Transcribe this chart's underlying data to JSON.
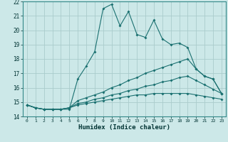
{
  "xlabel": "Humidex (Indice chaleur)",
  "ylabel": "",
  "bg_color": "#cce8e8",
  "grid_color": "#aacccc",
  "line_color": "#1a7070",
  "xlim": [
    -0.5,
    23.5
  ],
  "ylim": [
    14,
    22
  ],
  "xticks": [
    0,
    1,
    2,
    3,
    4,
    5,
    6,
    7,
    8,
    9,
    10,
    11,
    12,
    13,
    14,
    15,
    16,
    17,
    18,
    19,
    20,
    21,
    22,
    23
  ],
  "yticks": [
    14,
    15,
    16,
    17,
    18,
    19,
    20,
    21,
    22
  ],
  "lines": [
    {
      "x": [
        0,
        1,
        2,
        3,
        4,
        5,
        6,
        7,
        8,
        9,
        10,
        11,
        12,
        13,
        14,
        15,
        16,
        17,
        18,
        19,
        20,
        21,
        22,
        23
      ],
      "y": [
        14.8,
        14.6,
        14.5,
        14.5,
        14.5,
        14.5,
        16.6,
        17.5,
        18.5,
        21.5,
        21.8,
        20.3,
        21.3,
        19.7,
        19.5,
        20.7,
        19.4,
        19.0,
        19.1,
        18.8,
        17.3,
        16.8,
        16.6,
        15.6
      ]
    },
    {
      "x": [
        0,
        1,
        2,
        3,
        4,
        5,
        6,
        7,
        8,
        9,
        10,
        11,
        12,
        13,
        14,
        15,
        16,
        17,
        18,
        19,
        20,
        21,
        22,
        23
      ],
      "y": [
        14.8,
        14.6,
        14.5,
        14.5,
        14.5,
        14.6,
        15.1,
        15.3,
        15.5,
        15.7,
        16.0,
        16.2,
        16.5,
        16.7,
        17.0,
        17.2,
        17.4,
        17.6,
        17.8,
        18.0,
        17.3,
        16.8,
        16.6,
        15.6
      ]
    },
    {
      "x": [
        0,
        1,
        2,
        3,
        4,
        5,
        6,
        7,
        8,
        9,
        10,
        11,
        12,
        13,
        14,
        15,
        16,
        17,
        18,
        19,
        20,
        21,
        22,
        23
      ],
      "y": [
        14.8,
        14.6,
        14.5,
        14.5,
        14.5,
        14.6,
        14.9,
        15.0,
        15.2,
        15.3,
        15.5,
        15.6,
        15.8,
        15.9,
        16.1,
        16.2,
        16.4,
        16.5,
        16.7,
        16.8,
        16.5,
        16.2,
        15.9,
        15.6
      ]
    },
    {
      "x": [
        0,
        1,
        2,
        3,
        4,
        5,
        6,
        7,
        8,
        9,
        10,
        11,
        12,
        13,
        14,
        15,
        16,
        17,
        18,
        19,
        20,
        21,
        22,
        23
      ],
      "y": [
        14.8,
        14.6,
        14.5,
        14.5,
        14.5,
        14.6,
        14.8,
        14.9,
        15.0,
        15.1,
        15.2,
        15.3,
        15.4,
        15.5,
        15.5,
        15.6,
        15.6,
        15.6,
        15.6,
        15.6,
        15.5,
        15.4,
        15.3,
        15.2
      ]
    }
  ]
}
